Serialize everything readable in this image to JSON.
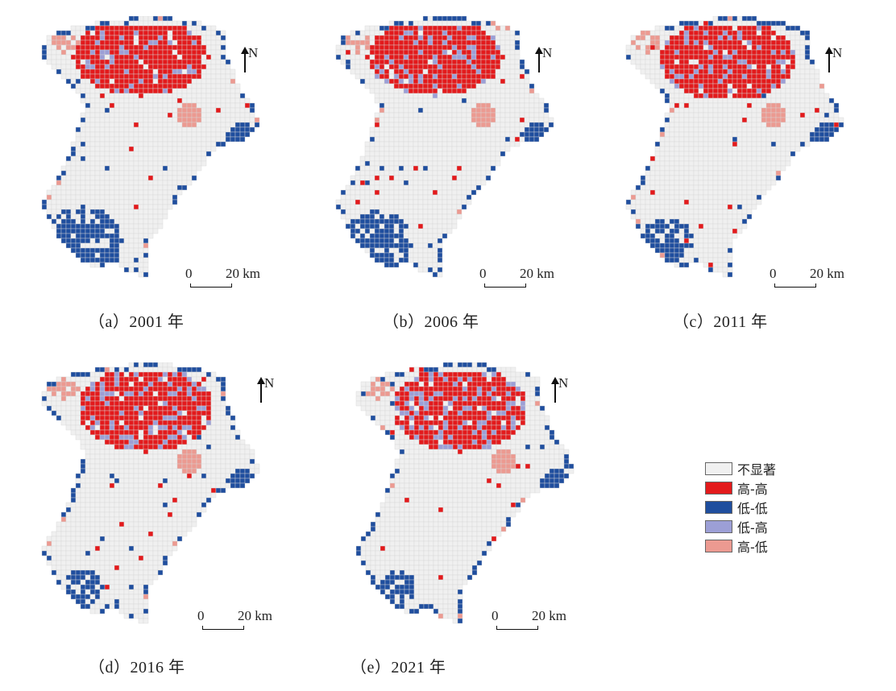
{
  "legend": {
    "items": [
      {
        "label": "不显著",
        "color": "#f0f0f0"
      },
      {
        "label": "高-高",
        "color": "#e31a1c"
      },
      {
        "label": "低-低",
        "color": "#1f4e9e"
      },
      {
        "label": "低-高",
        "color": "#9c9fd6"
      },
      {
        "label": "高-低",
        "color": "#ec9a91"
      }
    ]
  },
  "north_label": "N",
  "scale": {
    "zero": "0",
    "distance": "20 km"
  },
  "panels": [
    {
      "caption": "（a）2001 年"
    },
    {
      "caption": "（b）2006 年"
    },
    {
      "caption": "（c）2011 年"
    },
    {
      "caption": "（d）2016 年"
    },
    {
      "caption": "（e）2021 年"
    }
  ]
}
